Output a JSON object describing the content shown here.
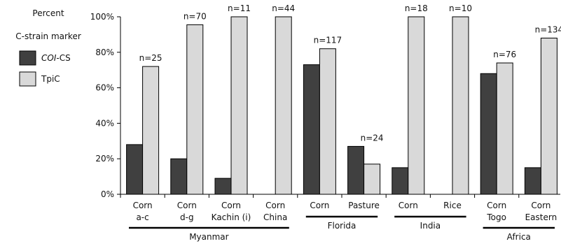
{
  "chart_data": {
    "type": "bar",
    "legend_title": [
      "Percent",
      "C-strain marker"
    ],
    "legend_position": "left",
    "y_ticks": [
      "0%",
      "20%",
      "40%",
      "60%",
      "80%",
      "100%"
    ],
    "ylim": [
      0,
      100
    ],
    "grid": false,
    "categories": [
      {
        "label_lines": [
          "Corn",
          "a-c"
        ],
        "n": "n=25"
      },
      {
        "label_lines": [
          "Corn",
          "d-g"
        ],
        "n": "n=70"
      },
      {
        "label_lines": [
          "Corn",
          "Kachin (i)"
        ],
        "n": "n=11"
      },
      {
        "label_lines": [
          "Corn",
          "China"
        ],
        "n": "n=44"
      },
      {
        "label_lines": [
          "Corn"
        ],
        "n": "n=117"
      },
      {
        "label_lines": [
          "Pasture"
        ],
        "n": "n=24"
      },
      {
        "label_lines": [
          "Corn"
        ],
        "n": "n=18"
      },
      {
        "label_lines": [
          "Rice"
        ],
        "n": "n=10"
      },
      {
        "label_lines": [
          "Corn",
          "Togo"
        ],
        "n": "n=76"
      },
      {
        "label_lines": [
          "Corn",
          "Eastern"
        ],
        "n": "n=134"
      }
    ],
    "series": [
      {
        "name_italic": "COI",
        "name_rest": "-CS",
        "color": "#404040",
        "values": [
          28,
          20,
          9,
          0,
          73,
          27,
          15,
          0,
          68,
          15
        ]
      },
      {
        "name_italic": "",
        "name_rest": "TpiC",
        "color": "#d9d9d9",
        "values": [
          72,
          95.5,
          100,
          100,
          82,
          17,
          100,
          100,
          74,
          88
        ]
      }
    ],
    "regions": [
      {
        "label": "Myanmar",
        "from": 0,
        "to": 3
      },
      {
        "label": "Florida",
        "from": 4,
        "to": 5
      },
      {
        "label": "India",
        "from": 6,
        "to": 7
      },
      {
        "label": "Africa",
        "from": 8,
        "to": 9
      }
    ]
  }
}
